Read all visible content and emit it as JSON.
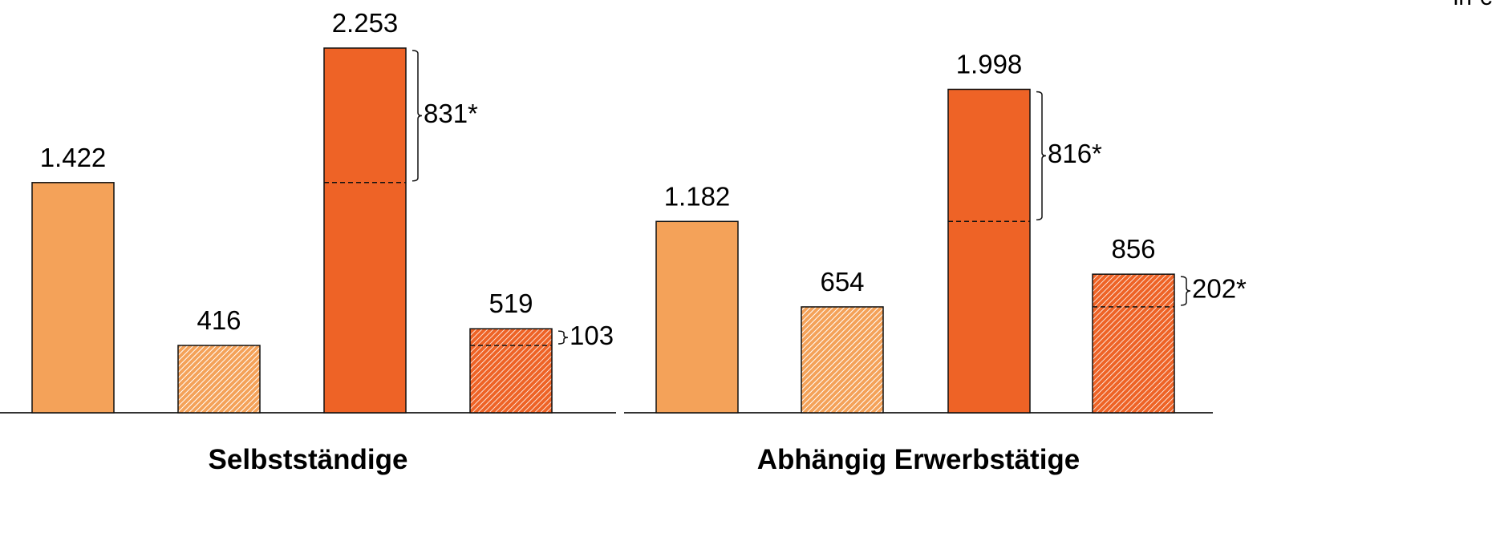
{
  "unit_label": "in €",
  "colors": {
    "light": "#F4A259",
    "dark": "#EE6326",
    "outline": "#111111"
  },
  "chart_data": {
    "type": "bar",
    "ylim": [
      0,
      2550
    ],
    "grid": false,
    "legend": "none",
    "title": "",
    "xlabel": "",
    "ylabel": "",
    "groups": [
      {
        "label": "Selbstständige",
        "bars": [
          {
            "value": 1422,
            "label": "1.422",
            "color": "light",
            "hatched": false
          },
          {
            "value": 416,
            "label": "416",
            "color": "light",
            "hatched": true
          },
          {
            "value": 2253,
            "label": "2.253",
            "color": "dark",
            "hatched": false,
            "split": 1422,
            "diff_label": "831*"
          },
          {
            "value": 519,
            "label": "519",
            "color": "dark",
            "hatched": true,
            "split": 416,
            "diff_label": "103"
          }
        ]
      },
      {
        "label": "Abhängig Erwerbstätige",
        "bars": [
          {
            "value": 1182,
            "label": "1.182",
            "color": "light",
            "hatched": false
          },
          {
            "value": 654,
            "label": "654",
            "color": "light",
            "hatched": true
          },
          {
            "value": 1998,
            "label": "1.998",
            "color": "dark",
            "hatched": false,
            "split": 1182,
            "diff_label": "816*"
          },
          {
            "value": 856,
            "label": "856",
            "color": "dark",
            "hatched": true,
            "split": 654,
            "diff_label": "202*"
          }
        ]
      }
    ]
  }
}
